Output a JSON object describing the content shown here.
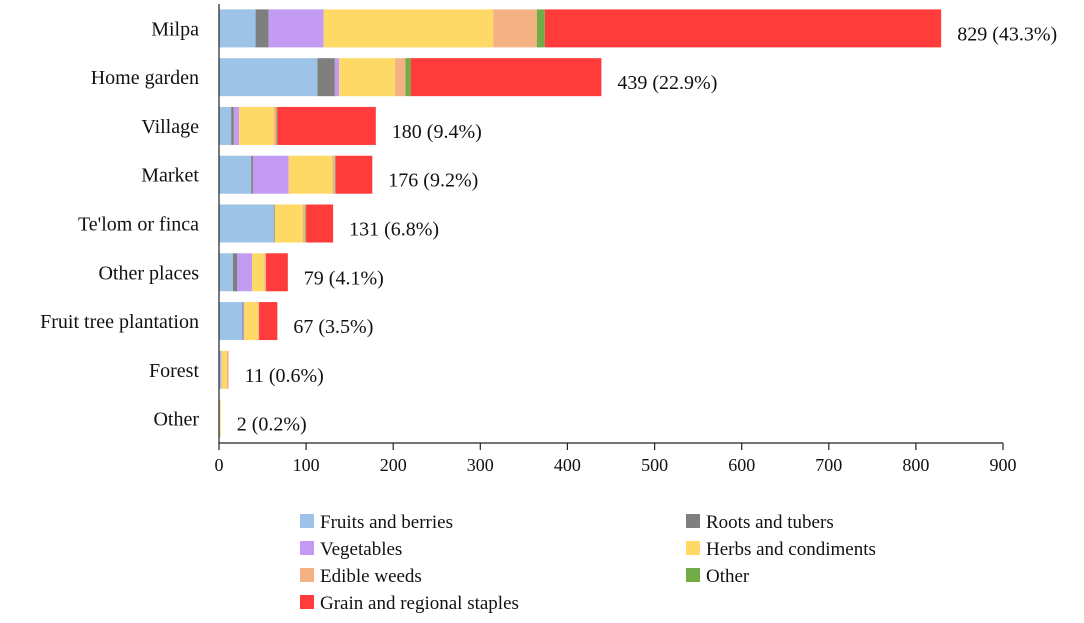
{
  "chart_data": {
    "type": "bar",
    "orientation": "horizontal",
    "stacked": true,
    "title": "",
    "xlabel": "",
    "ylabel": "",
    "xlim": [
      0,
      900
    ],
    "xticks": [
      0,
      100,
      200,
      300,
      400,
      500,
      600,
      700,
      800,
      900
    ],
    "grid": false,
    "legend_position": "bottom",
    "categories": [
      "Milpa",
      "Home garden",
      "Village",
      "Market",
      "Te'lom or finca",
      "Other places",
      "Fruit tree plantation",
      "Forest",
      "Other"
    ],
    "series": [
      {
        "name": "Fruits and berries",
        "color": "#9DC3E6",
        "values": [
          42,
          113,
          14,
          37,
          63,
          16,
          27,
          2,
          1
        ]
      },
      {
        "name": "Roots and tubers",
        "color": "#7F7F7F",
        "values": [
          15,
          20,
          3,
          2,
          1,
          5,
          1,
          0,
          0
        ]
      },
      {
        "name": "Vegetables",
        "color": "#C39BF2",
        "values": [
          63,
          5,
          6,
          41,
          0,
          17,
          1,
          1,
          0
        ]
      },
      {
        "name": "Herbs and condiments",
        "color": "#FFD966",
        "values": [
          195,
          64,
          40,
          50,
          32,
          14,
          16,
          6,
          1
        ]
      },
      {
        "name": "Edible weeds",
        "color": "#F4B183",
        "values": [
          50,
          12,
          3,
          3,
          3,
          2,
          1,
          2,
          0
        ]
      },
      {
        "name": "Other",
        "color": "#70AD47",
        "values": [
          9,
          6,
          1,
          1,
          1,
          0,
          0,
          0,
          0
        ]
      },
      {
        "name": "Grain and regional staples",
        "color": "#FF3B3B",
        "values": [
          455,
          219,
          113,
          42,
          31,
          25,
          21,
          0,
          0
        ]
      }
    ],
    "totals": [
      829,
      439,
      180,
      176,
      131,
      79,
      67,
      11,
      2
    ],
    "data_labels": [
      "829 (43.3%)",
      "439 (22.9%)",
      "180 (9.4%)",
      "176 (9.2%)",
      "131 (6.8%)",
      "79 (4.1%)",
      "67 (3.5%)",
      "11 (0.6%)",
      "2 (0.2%)"
    ]
  }
}
